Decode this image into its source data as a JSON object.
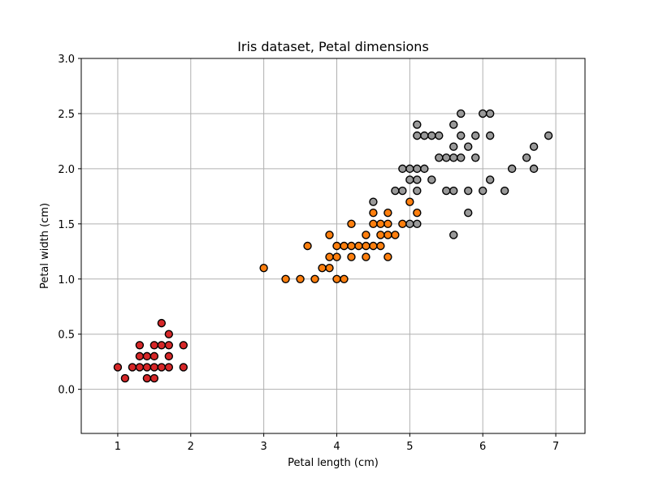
{
  "chart_data": {
    "type": "scatter",
    "title": "Iris dataset, Petal dimensions",
    "xlabel": "Petal length (cm)",
    "ylabel": "Petal width (cm)",
    "xlim": [
      0.5,
      7.4
    ],
    "ylim": [
      -0.4,
      3.0
    ],
    "xticks": [
      1,
      2,
      3,
      4,
      5,
      6,
      7
    ],
    "yticks": [
      0.0,
      0.5,
      1.0,
      1.5,
      2.0,
      2.5,
      3.0
    ],
    "xtick_labels": [
      "1",
      "2",
      "3",
      "4",
      "5",
      "6",
      "7"
    ],
    "ytick_labels": [
      "0.0",
      "0.5",
      "1.0",
      "1.5",
      "2.0",
      "2.5",
      "3.0"
    ],
    "grid": true,
    "legend": "none",
    "marker_edge_color": "#000000",
    "series": [
      {
        "color": "#d62728",
        "points": [
          [
            1.0,
            0.2
          ],
          [
            1.1,
            0.1
          ],
          [
            1.2,
            0.2
          ],
          [
            1.3,
            0.2
          ],
          [
            1.3,
            0.3
          ],
          [
            1.3,
            0.4
          ],
          [
            1.4,
            0.1
          ],
          [
            1.4,
            0.2
          ],
          [
            1.4,
            0.3
          ],
          [
            1.5,
            0.1
          ],
          [
            1.5,
            0.2
          ],
          [
            1.5,
            0.3
          ],
          [
            1.5,
            0.4
          ],
          [
            1.6,
            0.2
          ],
          [
            1.6,
            0.4
          ],
          [
            1.6,
            0.6
          ],
          [
            1.7,
            0.2
          ],
          [
            1.7,
            0.3
          ],
          [
            1.7,
            0.4
          ],
          [
            1.7,
            0.5
          ],
          [
            1.9,
            0.2
          ],
          [
            1.9,
            0.4
          ]
        ]
      },
      {
        "color": "#ff7f0e",
        "points": [
          [
            3.0,
            1.1
          ],
          [
            3.3,
            1.0
          ],
          [
            3.5,
            1.0
          ],
          [
            3.6,
            1.3
          ],
          [
            3.7,
            1.0
          ],
          [
            3.8,
            1.1
          ],
          [
            3.9,
            1.1
          ],
          [
            3.9,
            1.2
          ],
          [
            3.9,
            1.4
          ],
          [
            4.0,
            1.0
          ],
          [
            4.0,
            1.2
          ],
          [
            4.0,
            1.3
          ],
          [
            4.1,
            1.0
          ],
          [
            4.1,
            1.3
          ],
          [
            4.2,
            1.2
          ],
          [
            4.2,
            1.3
          ],
          [
            4.2,
            1.5
          ],
          [
            4.3,
            1.3
          ],
          [
            4.4,
            1.2
          ],
          [
            4.4,
            1.3
          ],
          [
            4.4,
            1.4
          ],
          [
            4.5,
            1.3
          ],
          [
            4.5,
            1.5
          ],
          [
            4.5,
            1.6
          ],
          [
            4.6,
            1.3
          ],
          [
            4.6,
            1.4
          ],
          [
            4.6,
            1.5
          ],
          [
            4.7,
            1.2
          ],
          [
            4.7,
            1.4
          ],
          [
            4.7,
            1.5
          ],
          [
            4.7,
            1.6
          ],
          [
            4.8,
            1.4
          ],
          [
            4.9,
            1.5
          ],
          [
            5.0,
            1.7
          ],
          [
            5.1,
            1.6
          ]
        ]
      },
      {
        "color": "#999999",
        "points": [
          [
            4.5,
            1.7
          ],
          [
            4.8,
            1.8
          ],
          [
            4.9,
            1.8
          ],
          [
            4.9,
            2.0
          ],
          [
            5.0,
            1.5
          ],
          [
            5.0,
            1.9
          ],
          [
            5.0,
            2.0
          ],
          [
            5.1,
            1.5
          ],
          [
            5.1,
            1.8
          ],
          [
            5.1,
            1.9
          ],
          [
            5.1,
            2.0
          ],
          [
            5.1,
            2.3
          ],
          [
            5.1,
            2.4
          ],
          [
            5.2,
            2.0
          ],
          [
            5.2,
            2.3
          ],
          [
            5.3,
            1.9
          ],
          [
            5.3,
            2.3
          ],
          [
            5.4,
            2.1
          ],
          [
            5.4,
            2.3
          ],
          [
            5.5,
            1.8
          ],
          [
            5.5,
            2.1
          ],
          [
            5.6,
            1.4
          ],
          [
            5.6,
            1.8
          ],
          [
            5.6,
            2.1
          ],
          [
            5.6,
            2.2
          ],
          [
            5.6,
            2.4
          ],
          [
            5.7,
            2.1
          ],
          [
            5.7,
            2.3
          ],
          [
            5.7,
            2.5
          ],
          [
            5.8,
            1.6
          ],
          [
            5.8,
            1.8
          ],
          [
            5.8,
            2.2
          ],
          [
            5.9,
            2.1
          ],
          [
            5.9,
            2.3
          ],
          [
            6.0,
            1.8
          ],
          [
            6.0,
            2.5
          ],
          [
            6.1,
            1.9
          ],
          [
            6.1,
            2.3
          ],
          [
            6.1,
            2.5
          ],
          [
            6.3,
            1.8
          ],
          [
            6.4,
            2.0
          ],
          [
            6.6,
            2.1
          ],
          [
            6.7,
            2.0
          ],
          [
            6.7,
            2.2
          ],
          [
            6.9,
            2.3
          ]
        ]
      }
    ]
  }
}
